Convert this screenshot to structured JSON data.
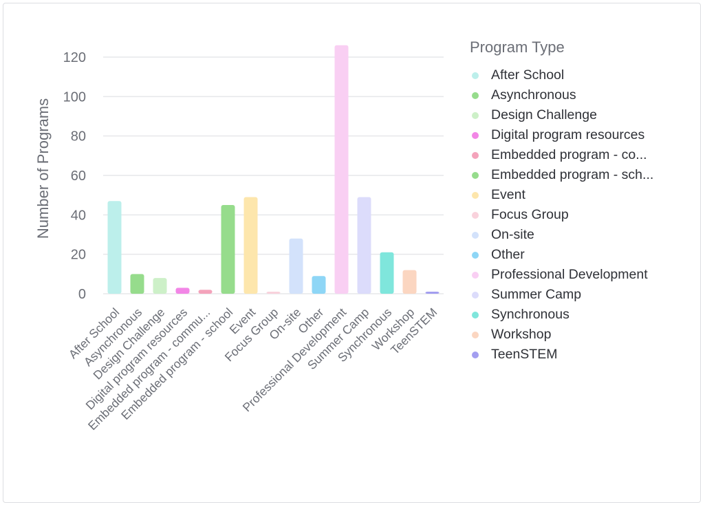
{
  "chart_data": {
    "type": "bar",
    "ylabel": "Number of Programs",
    "ylim": [
      0,
      120
    ],
    "yticks": [
      0,
      20,
      40,
      60,
      80,
      100,
      120
    ],
    "categories": [
      "After School",
      "Asynchronous",
      "Design Challenge",
      "Digital program resources",
      "Embedded program - commu...",
      "Embedded program - school",
      "Event",
      "Focus Group",
      "On-site",
      "Other",
      "Professional Development",
      "Summer Camp",
      "Synchronous",
      "Workshop",
      "TeenSTEM"
    ],
    "values": [
      47,
      10,
      8,
      3,
      2,
      45,
      49,
      1,
      28,
      9,
      126,
      49,
      21,
      12,
      1
    ],
    "colors": [
      "#bcefeb",
      "#96dc8c",
      "#cdf0c8",
      "#f286e6",
      "#f4a3bb",
      "#96dc8c",
      "#fde6ac",
      "#f9d2dc",
      "#d3e2fb",
      "#8ed6f6",
      "#f9cff3",
      "#dcdcfb",
      "#7fe6dc",
      "#fbd6c1",
      "#a39ef0"
    ],
    "legend": {
      "title": "Program Type",
      "placement": "right",
      "items": [
        "After School",
        "Asynchronous",
        "Design Challenge",
        "Digital program resources",
        "Embedded program - co...",
        "Embedded program - sch...",
        "Event",
        "Focus Group",
        "On-site",
        "Other",
        "Professional Development",
        "Summer Camp",
        "Synchronous",
        "Workshop",
        "TeenSTEM"
      ]
    },
    "grid": true
  }
}
